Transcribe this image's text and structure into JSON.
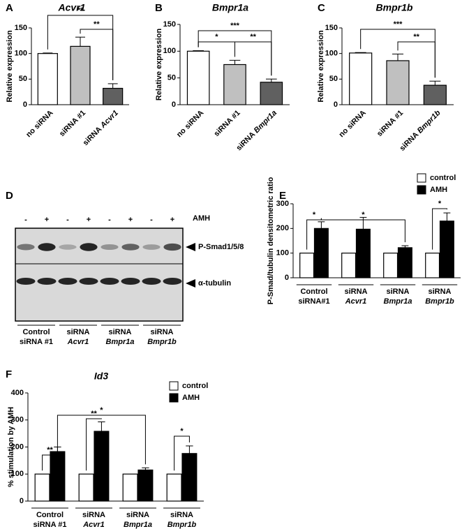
{
  "chart_data": [
    {
      "type": "bar",
      "panel": "A",
      "title": "Acvr1",
      "ylabel": "Relative expression",
      "categories": [
        "no siRNA",
        "siRNA #1",
        "siRNA Acvr1"
      ],
      "values": [
        100,
        114,
        32
      ],
      "errors": [
        1,
        18,
        9
      ],
      "colors": [
        "#ffffff",
        "#c0c0c0",
        "#606060"
      ],
      "ylim": [
        0,
        150
      ],
      "yticks": [
        0,
        50,
        100,
        150
      ],
      "annotations": [
        "**",
        "**"
      ]
    },
    {
      "type": "bar",
      "panel": "B",
      "title": "Bmpr1a",
      "ylabel": "Relative expression",
      "categories": [
        "no siRNA",
        "siRNA #1",
        "siRNA Bmpr1a"
      ],
      "values": [
        100,
        75,
        42
      ],
      "errors": [
        1,
        8,
        6
      ],
      "colors": [
        "#ffffff",
        "#c0c0c0",
        "#606060"
      ],
      "ylim": [
        0,
        150
      ],
      "yticks": [
        0,
        50,
        100,
        150
      ],
      "annotations": [
        "*",
        "***",
        "**"
      ]
    },
    {
      "type": "bar",
      "panel": "C",
      "title": "Bmpr1b",
      "ylabel": "Relative expression",
      "categories": [
        "no siRNA",
        "siRNA #1",
        "siRNA Bmpr1b"
      ],
      "values": [
        101,
        86,
        38
      ],
      "errors": [
        1,
        13,
        8
      ],
      "colors": [
        "#ffffff",
        "#c0c0c0",
        "#606060"
      ],
      "ylim": [
        0,
        150
      ],
      "yticks": [
        0,
        50,
        100,
        150
      ],
      "annotations": [
        "***",
        "**"
      ]
    },
    {
      "type": "bar",
      "panel": "E",
      "ylabel": "P-Smad/tubulin densitometric ratio",
      "categories": [
        "Control siRNA#1",
        "siRNA Acvr1",
        "siRNA Bmpr1a",
        "siRNA Bmpr1b"
      ],
      "series": [
        {
          "name": "control",
          "color": "#ffffff",
          "values": [
            100,
            100,
            100,
            100
          ]
        },
        {
          "name": "AMH",
          "color": "#000000",
          "values": [
            200,
            197,
            122,
            230
          ],
          "errors": [
            27,
            48,
            8,
            33
          ]
        }
      ],
      "ylim": [
        0,
        300
      ],
      "yticks": [
        0,
        100,
        200,
        300
      ],
      "legend": "top-right",
      "annotations": [
        "*",
        "*",
        "*"
      ]
    },
    {
      "type": "bar",
      "panel": "F",
      "title": "Id3",
      "ylabel": "% stimulation by AMH",
      "categories": [
        "Control siRNA #1",
        "siRNA Acvr1",
        "siRNA Bmpr1a",
        "siRNA Bmpr1b"
      ],
      "series": [
        {
          "name": "control",
          "color": "#ffffff",
          "values": [
            100,
            100,
            100,
            100
          ]
        },
        {
          "name": "AMH",
          "color": "#000000",
          "values": [
            183,
            258,
            115,
            176
          ],
          "errors": [
            17,
            35,
            8,
            28
          ]
        }
      ],
      "ylim": [
        0,
        400
      ],
      "yticks": [
        0,
        100,
        200,
        300,
        400
      ],
      "legend": "top-right",
      "annotations": [
        "**",
        "**",
        "*",
        "*"
      ]
    }
  ],
  "blot": {
    "panel": "D",
    "treatment_label": "AMH",
    "lane_signs": [
      "-",
      "+",
      "-",
      "+",
      "-",
      "+",
      "-",
      "+"
    ],
    "bands": [
      "P-Smad1/5/8",
      "α-tubulin"
    ],
    "groups": [
      "Control siRNA #1",
      "siRNA Acvr1",
      "siRNA Bmpr1a",
      "siRNA Bmpr1b"
    ]
  }
}
